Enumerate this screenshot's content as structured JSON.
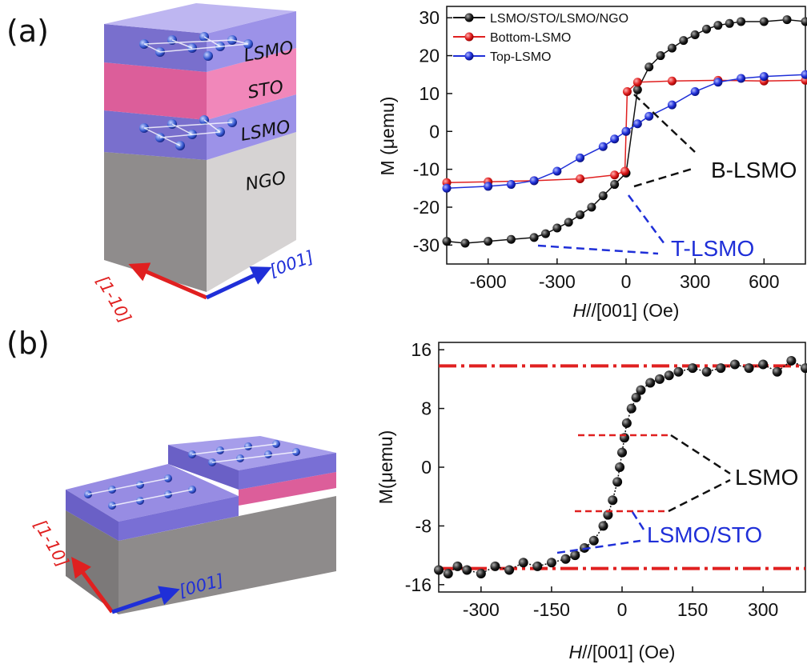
{
  "panels": {
    "a": {
      "label": "(a)"
    },
    "b": {
      "label": "(b)"
    }
  },
  "schematic_a": {
    "layers": [
      "LSMO",
      "STO",
      "LSMO",
      "NGO"
    ],
    "dir_red": "[1-10]",
    "dir_blue": "[001]"
  },
  "schematic_b": {
    "dir_red": "[1-10]",
    "dir_blue": "[001]"
  },
  "colors": {
    "black": "#111111",
    "red": "#e02020",
    "blue": "#1f2fd8",
    "lsmo": "#7a6fd8",
    "sto": "#e8559a",
    "ngo": "#b9b6b6"
  },
  "chart_data": [
    {
      "type": "line",
      "xlabel_italic": "H",
      "xlabel_rest": "//[001] (Oe)",
      "ylabel": "M (μemu)",
      "xlim": [
        -780,
        780
      ],
      "ylim": [
        -35,
        33
      ],
      "xticks": [
        -600,
        -300,
        0,
        300,
        600
      ],
      "yticks": [
        -30,
        -20,
        -10,
        0,
        10,
        20,
        30
      ],
      "legend_position": "top-left",
      "series": [
        {
          "name": "LSMO/STO/LSMO/NGO",
          "color": "#111111",
          "x": [
            -780,
            -700,
            -600,
            -500,
            -400,
            -350,
            -300,
            -250,
            -200,
            -150,
            -100,
            -50,
            0,
            50,
            100,
            150,
            200,
            250,
            300,
            350,
            400,
            450,
            500,
            600,
            700,
            780
          ],
          "y": [
            -29,
            -29.5,
            -29,
            -28.5,
            -28,
            -27,
            -25.5,
            -24,
            -22,
            -20,
            -17,
            -14,
            -11,
            11,
            17,
            20,
            22,
            24,
            25.5,
            27,
            28,
            28.5,
            29,
            29,
            29.5,
            29
          ]
        },
        {
          "name": "Bottom-LSMO",
          "color": "#e02020",
          "x": [
            -780,
            -600,
            -400,
            -200,
            -50,
            -5,
            0,
            5,
            50,
            200,
            400,
            600,
            780
          ],
          "y": [
            -13.5,
            -13.3,
            -13,
            -12.5,
            -11.5,
            -10.5,
            0,
            10.5,
            13,
            13.3,
            13.5,
            13.3,
            13.5
          ]
        },
        {
          "name": "Top-LSMO",
          "color": "#1f2fd8",
          "x": [
            -780,
            -600,
            -500,
            -400,
            -300,
            -200,
            -100,
            -50,
            0,
            50,
            100,
            200,
            300,
            400,
            500,
            600,
            780
          ],
          "y": [
            -15,
            -14.5,
            -14,
            -13,
            -10.5,
            -7,
            -4,
            -2,
            0,
            2,
            4,
            7,
            10.5,
            13,
            14,
            14.5,
            15
          ]
        }
      ],
      "annotations": [
        {
          "text": "B-LSMO",
          "color": "#111111"
        },
        {
          "text": "T-LSMO",
          "color": "#1f2fd8"
        }
      ]
    },
    {
      "type": "line",
      "xlabel_italic": "H",
      "xlabel_rest": "//[001] (Oe)",
      "ylabel": "M(μemu)",
      "xlim": [
        -390,
        390
      ],
      "ylim": [
        -17,
        17
      ],
      "xticks": [
        -300,
        -150,
        0,
        150,
        300
      ],
      "yticks": [
        -16,
        -8,
        0,
        8,
        16
      ],
      "series": [
        {
          "name": "",
          "color": "#111111",
          "x": [
            -390,
            -370,
            -350,
            -330,
            -300,
            -270,
            -240,
            -210,
            -180,
            -150,
            -120,
            -100,
            -80,
            -60,
            -40,
            -30,
            -20,
            -10,
            -5,
            0,
            5,
            10,
            20,
            30,
            40,
            60,
            80,
            100,
            120,
            150,
            180,
            210,
            240,
            270,
            300,
            330,
            360,
            390
          ],
          "y": [
            -14,
            -14.5,
            -13.5,
            -14,
            -14.5,
            -13.5,
            -14,
            -13,
            -13.5,
            -13,
            -12.5,
            -12,
            -11,
            -10,
            -8,
            -6.5,
            -4.5,
            -2,
            0,
            2,
            4,
            6,
            8,
            9.5,
            10.5,
            11.5,
            12,
            12.5,
            13,
            13.5,
            13,
            13.5,
            14,
            13.5,
            14,
            13,
            14.5,
            13.5
          ]
        }
      ],
      "reference_lines": [
        {
          "y": 13.8,
          "color": "#e02020",
          "style": "dash-dot"
        },
        {
          "y": -13.8,
          "color": "#e02020",
          "style": "dash-dot"
        }
      ],
      "annotations": [
        {
          "text": "LSMO",
          "color": "#111111"
        },
        {
          "text": "LSMO/STO",
          "color": "#1f2fd8"
        }
      ]
    }
  ]
}
